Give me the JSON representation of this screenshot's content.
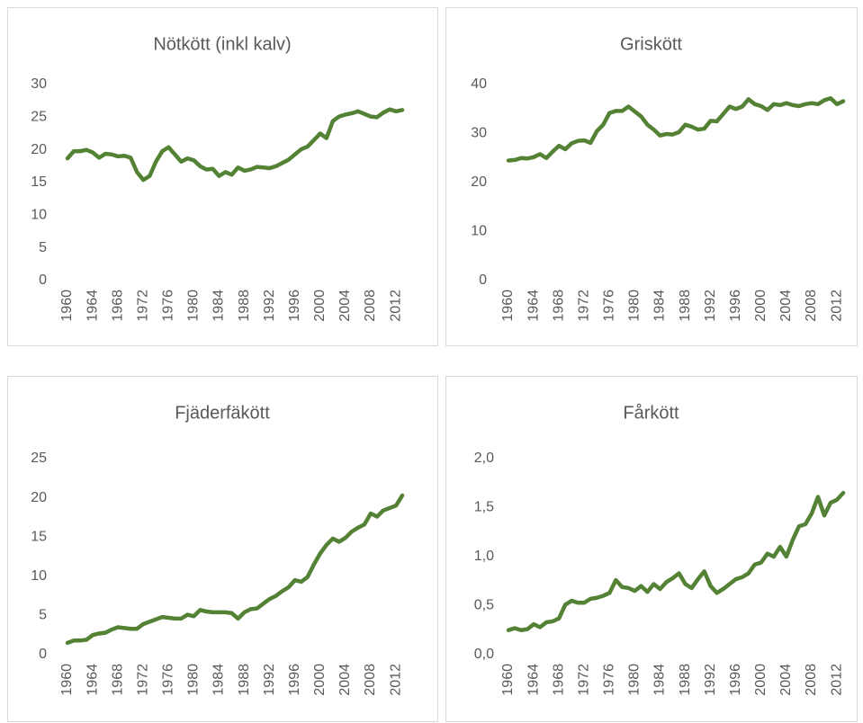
{
  "chart_data": [
    {
      "type": "line",
      "title": "Nötkött (inkl kalv)",
      "categories": [
        "1960",
        null,
        null,
        null,
        "1964",
        null,
        null,
        null,
        "1968",
        null,
        null,
        null,
        "1972",
        null,
        null,
        null,
        "1976",
        null,
        null,
        null,
        "1980",
        null,
        null,
        null,
        "1984",
        null,
        null,
        null,
        "1988",
        null,
        null,
        null,
        "1992",
        null,
        null,
        null,
        "1996",
        null,
        null,
        null,
        "2000",
        null,
        null,
        null,
        "2004",
        null,
        null,
        null,
        "2008",
        null,
        null,
        null,
        "2012",
        null
      ],
      "values": [
        18.7,
        19.8,
        19.8,
        20.0,
        19.6,
        18.8,
        19.4,
        19.3,
        19.0,
        19.1,
        18.8,
        16.6,
        15.4,
        16.0,
        18.2,
        19.8,
        20.4,
        19.3,
        18.2,
        18.7,
        18.4,
        17.5,
        17.0,
        17.1,
        16.0,
        16.6,
        16.2,
        17.3,
        16.8,
        17.0,
        17.4,
        17.3,
        17.2,
        17.5,
        18.0,
        18.5,
        19.3,
        20.1,
        20.5,
        21.5,
        22.5,
        21.8,
        24.4,
        25.1,
        25.4,
        25.6,
        25.9,
        25.5,
        25.1,
        25.0,
        25.7,
        26.2,
        25.9,
        26.1
      ],
      "color": "#548235",
      "ylim": [
        0,
        30
      ],
      "yticks": [
        0,
        5,
        10,
        15,
        20,
        25,
        30
      ],
      "grid": false
    },
    {
      "type": "line",
      "title": "Griskött",
      "categories": [
        "1960",
        null,
        null,
        null,
        "1964",
        null,
        null,
        null,
        "1968",
        null,
        null,
        null,
        "1972",
        null,
        null,
        null,
        "1976",
        null,
        null,
        null,
        "1980",
        null,
        null,
        null,
        "1984",
        null,
        null,
        null,
        "1988",
        null,
        null,
        null,
        "1992",
        null,
        null,
        null,
        "1996",
        null,
        null,
        null,
        "2000",
        null,
        null,
        null,
        "2004",
        null,
        null,
        null,
        "2008",
        null,
        null,
        null,
        "2012",
        null
      ],
      "values": [
        24.5,
        24.6,
        25.0,
        24.9,
        25.2,
        25.8,
        25.0,
        26.3,
        27.5,
        26.8,
        28.0,
        28.5,
        28.6,
        28.1,
        30.5,
        31.8,
        34.2,
        34.6,
        34.6,
        35.5,
        34.5,
        33.5,
        31.8,
        30.8,
        29.6,
        29.9,
        29.8,
        30.3,
        31.8,
        31.4,
        30.8,
        31.0,
        32.6,
        32.5,
        34.0,
        35.5,
        35.0,
        35.5,
        37.0,
        36.0,
        35.6,
        34.8,
        36.0,
        35.8,
        36.2,
        35.8,
        35.6,
        36.0,
        36.2,
        36.0,
        36.8,
        37.2,
        36.0,
        36.6
      ],
      "color": "#548235",
      "ylim": [
        0,
        40
      ],
      "yticks": [
        0,
        10,
        20,
        30,
        40
      ],
      "grid": false
    },
    {
      "type": "line",
      "title": "Fjäderfäkött",
      "categories": [
        "1960",
        null,
        null,
        null,
        "1964",
        null,
        null,
        null,
        "1968",
        null,
        null,
        null,
        "1972",
        null,
        null,
        null,
        "1976",
        null,
        null,
        null,
        "1980",
        null,
        null,
        null,
        "1984",
        null,
        null,
        null,
        "1988",
        null,
        null,
        null,
        "1992",
        null,
        null,
        null,
        "1996",
        null,
        null,
        null,
        "2000",
        null,
        null,
        null,
        "2004",
        null,
        null,
        null,
        "2008",
        null,
        null,
        null,
        "2012",
        null
      ],
      "values": [
        1.5,
        1.8,
        1.8,
        1.9,
        2.5,
        2.7,
        2.8,
        3.2,
        3.5,
        3.4,
        3.3,
        3.3,
        3.9,
        4.2,
        4.5,
        4.8,
        4.7,
        4.6,
        4.6,
        5.1,
        4.9,
        5.7,
        5.5,
        5.4,
        5.4,
        5.4,
        5.3,
        4.6,
        5.4,
        5.8,
        5.9,
        6.5,
        7.1,
        7.5,
        8.1,
        8.6,
        9.5,
        9.3,
        9.9,
        11.5,
        12.9,
        14.0,
        14.8,
        14.4,
        14.9,
        15.7,
        16.2,
        16.6,
        18.0,
        17.6,
        18.4,
        18.7,
        19.0,
        20.3
      ],
      "color": "#548235",
      "ylim": [
        0,
        25
      ],
      "yticks": [
        0,
        5,
        10,
        15,
        20,
        25
      ],
      "grid": false
    },
    {
      "type": "line",
      "title": "Fårkött",
      "categories": [
        "1960",
        null,
        null,
        null,
        "1964",
        null,
        null,
        null,
        "1968",
        null,
        null,
        null,
        "1972",
        null,
        null,
        null,
        "1976",
        null,
        null,
        null,
        "1980",
        null,
        null,
        null,
        "1984",
        null,
        null,
        null,
        "1988",
        null,
        null,
        null,
        "1992",
        null,
        null,
        null,
        "1996",
        null,
        null,
        null,
        "2000",
        null,
        null,
        null,
        "2004",
        null,
        null,
        null,
        "2008",
        null,
        null,
        null,
        "2012",
        null
      ],
      "values": [
        0.25,
        0.27,
        0.25,
        0.26,
        0.31,
        0.28,
        0.33,
        0.34,
        0.37,
        0.51,
        0.55,
        0.53,
        0.53,
        0.57,
        0.58,
        0.6,
        0.63,
        0.76,
        0.69,
        0.68,
        0.65,
        0.7,
        0.64,
        0.72,
        0.67,
        0.74,
        0.78,
        0.83,
        0.72,
        0.68,
        0.77,
        0.85,
        0.7,
        0.63,
        0.67,
        0.72,
        0.77,
        0.79,
        0.83,
        0.92,
        0.94,
        1.03,
        1.0,
        1.1,
        1.0,
        1.17,
        1.31,
        1.33,
        1.44,
        1.61,
        1.42,
        1.55,
        1.58,
        1.65
      ],
      "color": "#548235",
      "ylim": [
        0,
        2
      ],
      "yticks": [
        {
          "value": 0,
          "label": "0,0"
        },
        {
          "value": 0.5,
          "label": "0,5"
        },
        {
          "value": 1,
          "label": "1,0"
        },
        {
          "value": 1.5,
          "label": "1,5"
        },
        {
          "value": 2,
          "label": "2,0"
        }
      ],
      "grid": false
    }
  ]
}
